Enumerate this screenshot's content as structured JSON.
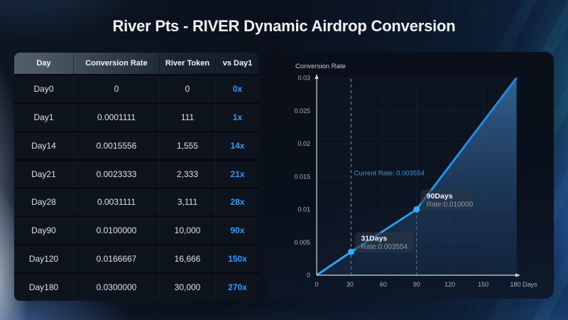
{
  "title": "River Pts - RIVER Dynamic Airdrop Conversion",
  "table": {
    "headers": [
      "Day",
      "Conversion Rate",
      "River Token",
      "vs Day1"
    ],
    "rows": [
      {
        "day": "Day0",
        "rate": "0",
        "token": "0",
        "mult": "0x"
      },
      {
        "day": "Day1",
        "rate": "0.0001111",
        "token": "111",
        "mult": "1x"
      },
      {
        "day": "Day14",
        "rate": "0.0015556",
        "token": "1,555",
        "mult": "14x"
      },
      {
        "day": "Day21",
        "rate": "0.0023333",
        "token": "2,333",
        "mult": "21x"
      },
      {
        "day": "Day28",
        "rate": "0.0031111",
        "token": "3,111",
        "mult": "28x"
      },
      {
        "day": "Day90",
        "rate": "0.0100000",
        "token": "10,000",
        "mult": "90x"
      },
      {
        "day": "Day120",
        "rate": "0.0166667",
        "token": "16,666",
        "mult": "150x"
      },
      {
        "day": "Day180",
        "rate": "0.0300000",
        "token": "30,000",
        "mult": "270x"
      }
    ]
  },
  "chart_data": {
    "type": "area",
    "title": "Conversion Rate",
    "x": [
      0,
      31,
      90,
      180
    ],
    "y": [
      0,
      0.003554,
      0.01,
      0.03
    ],
    "xlim": [
      0,
      180
    ],
    "ylim": [
      0,
      0.03
    ],
    "x_tick_values": [
      0,
      30,
      60,
      90,
      120,
      150,
      180
    ],
    "x_tick_labels": [
      "0",
      "30",
      "60",
      "90",
      "120",
      "150",
      "180 Days"
    ],
    "y_tick_values": [
      0,
      0.005,
      0.01,
      0.015,
      0.02,
      0.025,
      0.03
    ],
    "y_tick_labels": [
      "0",
      "0.005",
      "0.01",
      "0.015",
      "0.02",
      "0.025",
      "0.03"
    ],
    "grid": true,
    "legend": "none",
    "current_rate_label": "Current Rate: 0.003554",
    "markers": [
      {
        "day": 31,
        "rate": 0.003554,
        "label": "31Days",
        "sublabel": "Rate:0.003554",
        "dashed_full_height": true
      },
      {
        "day": 90,
        "rate": 0.01,
        "label": "90Days",
        "sublabel": "Rate:0.010000",
        "dashed_full_height": false
      }
    ],
    "colors": {
      "line": "#1f86e0",
      "line2": "#31a2f2",
      "marker": "#30b0fa",
      "annotation": "#4496cf"
    }
  },
  "colors": {
    "accent_blue": "#2f9bff"
  }
}
